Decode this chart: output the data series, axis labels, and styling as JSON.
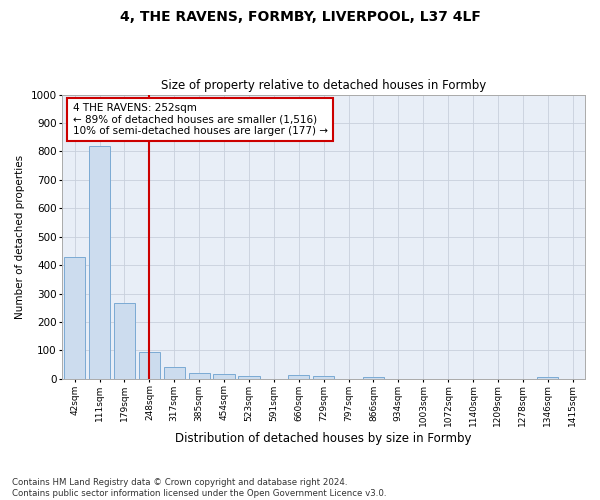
{
  "title": "4, THE RAVENS, FORMBY, LIVERPOOL, L37 4LF",
  "subtitle": "Size of property relative to detached houses in Formby",
  "xlabel": "Distribution of detached houses by size in Formby",
  "ylabel": "Number of detached properties",
  "categories": [
    "42sqm",
    "111sqm",
    "179sqm",
    "248sqm",
    "317sqm",
    "385sqm",
    "454sqm",
    "523sqm",
    "591sqm",
    "660sqm",
    "729sqm",
    "797sqm",
    "866sqm",
    "934sqm",
    "1003sqm",
    "1072sqm",
    "1140sqm",
    "1209sqm",
    "1278sqm",
    "1346sqm",
    "1415sqm"
  ],
  "values": [
    430,
    820,
    265,
    93,
    43,
    20,
    16,
    10,
    0,
    12,
    10,
    0,
    5,
    0,
    0,
    0,
    0,
    0,
    0,
    7,
    0
  ],
  "bar_color": "#ccdcee",
  "bar_edge_color": "#7baad4",
  "bar_linewidth": 0.7,
  "red_line_x": 3.0,
  "annotation_text": "4 THE RAVENS: 252sqm\n← 89% of detached houses are smaller (1,516)\n10% of semi-detached houses are larger (177) →",
  "annotation_box_color": "#ffffff",
  "annotation_box_edge": "#cc0000",
  "red_line_color": "#cc0000",
  "grid_color": "#c8d0dc",
  "plot_bg_color": "#e8eef7",
  "figure_bg_color": "#ffffff",
  "ylim": [
    0,
    1000
  ],
  "yticks": [
    0,
    100,
    200,
    300,
    400,
    500,
    600,
    700,
    800,
    900,
    1000
  ],
  "footnote": "Contains HM Land Registry data © Crown copyright and database right 2024.\nContains public sector information licensed under the Open Government Licence v3.0."
}
